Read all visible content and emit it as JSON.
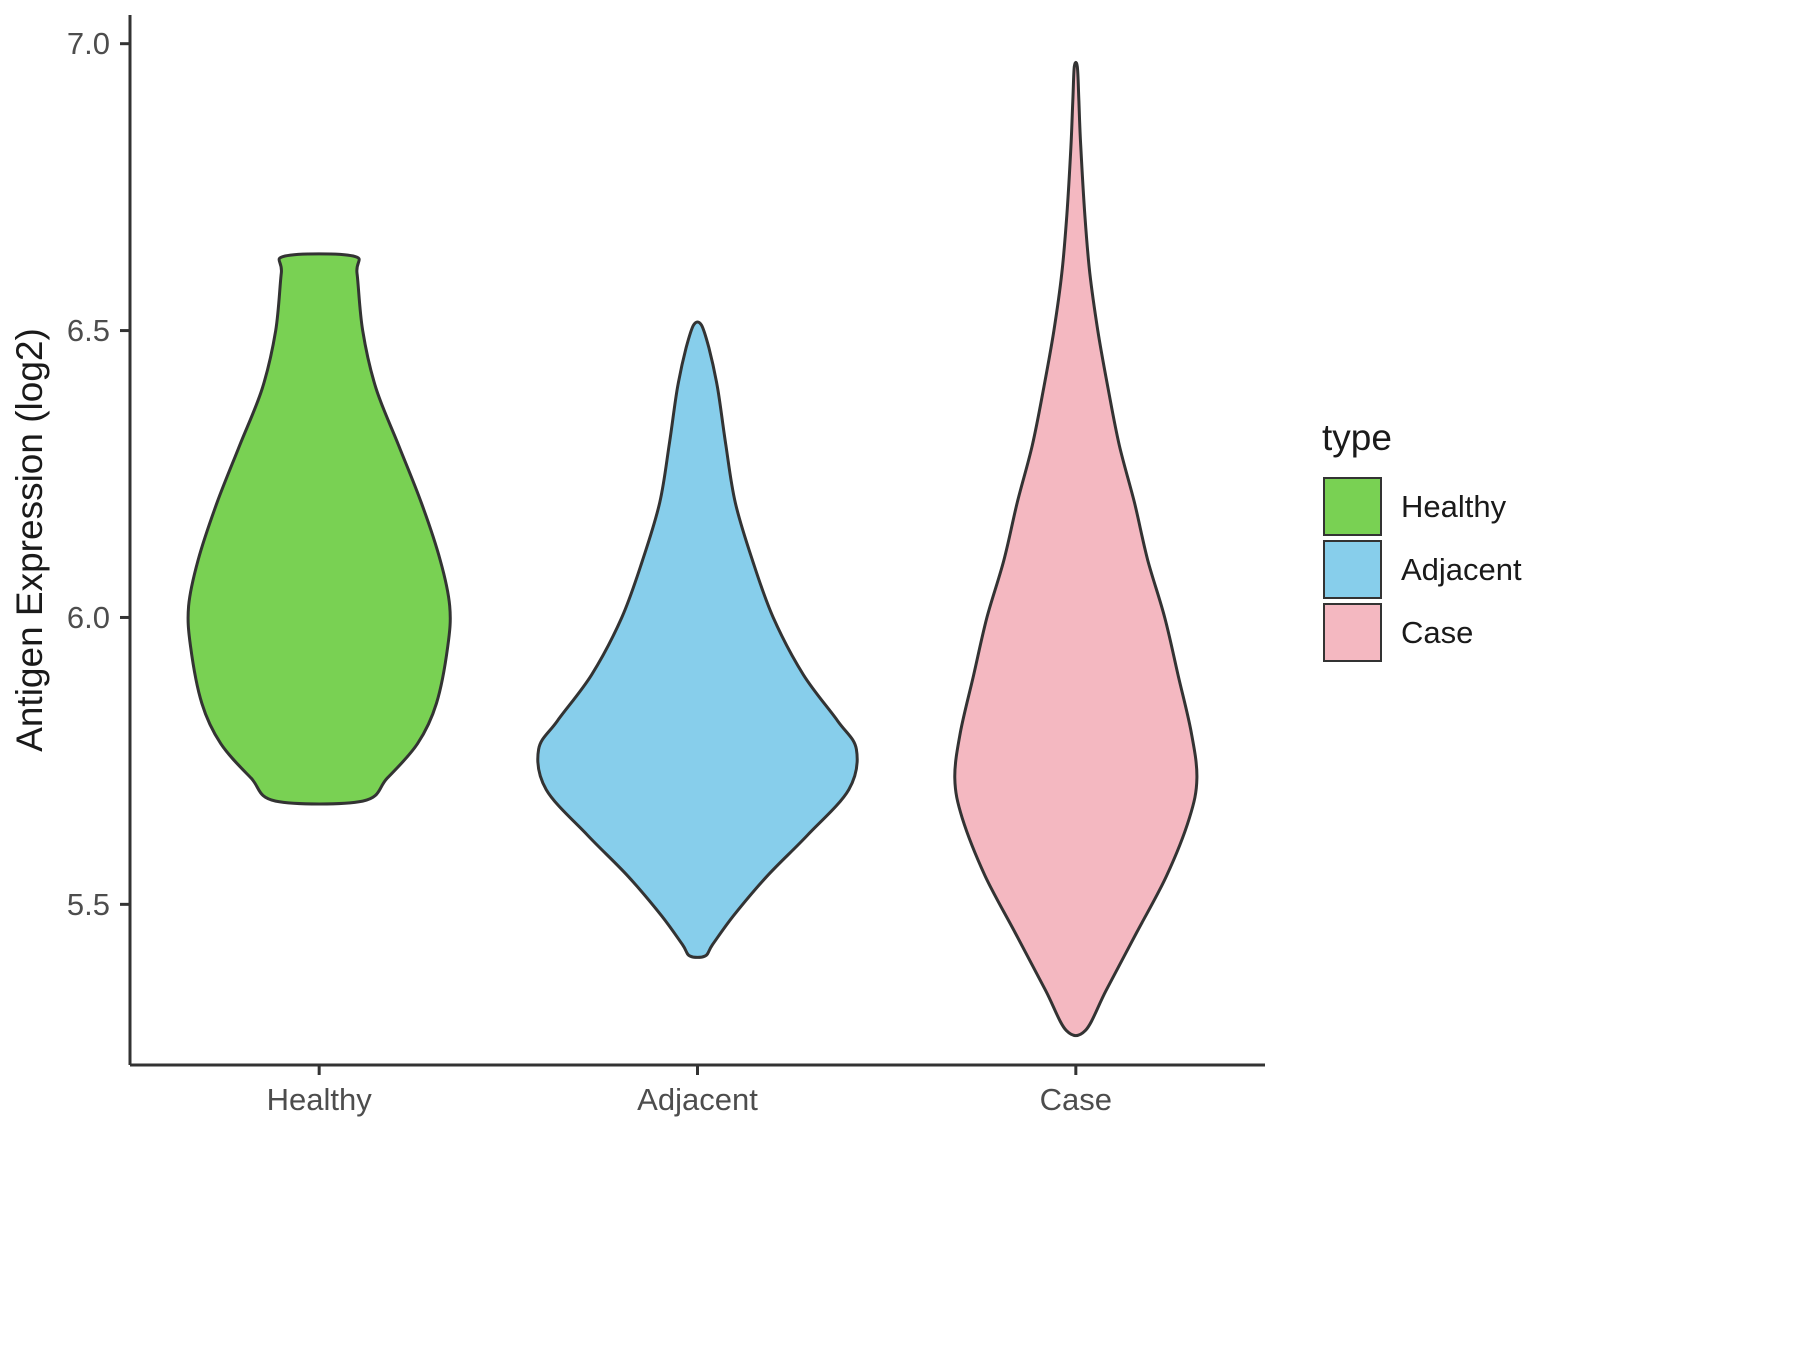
{
  "chart_data": {
    "type": "violin",
    "title": "",
    "xlabel": "",
    "ylabel": "Antigen Expression (log2)",
    "ylim": [
      5.22,
      7.05
    ],
    "yticks": [
      5.5,
      6.0,
      6.5,
      7.0
    ],
    "ytick_labels": [
      "5.5",
      "6.0",
      "6.5",
      "7.0"
    ],
    "categories": [
      "Healthy",
      "Adjacent",
      "Case"
    ],
    "grid": "off",
    "legend": {
      "title": "type",
      "position": "right",
      "entries": [
        {
          "label": "Healthy",
          "color": "#79D153"
        },
        {
          "label": "Adjacent",
          "color": "#87CEEB"
        },
        {
          "label": "Case",
          "color": "#F4B8C1"
        }
      ]
    },
    "series": [
      {
        "name": "Healthy",
        "color": "#79D153",
        "value_range": [
          5.68,
          6.63
        ],
        "cap": "flat",
        "profile": [
          [
            5.68,
            0.115
          ],
          [
            5.72,
            0.18
          ],
          [
            5.78,
            0.26
          ],
          [
            5.85,
            0.31
          ],
          [
            5.95,
            0.34
          ],
          [
            6.02,
            0.345
          ],
          [
            6.1,
            0.32
          ],
          [
            6.2,
            0.27
          ],
          [
            6.3,
            0.21
          ],
          [
            6.4,
            0.15
          ],
          [
            6.5,
            0.115
          ],
          [
            6.6,
            0.1
          ],
          [
            6.63,
            0.09
          ]
        ]
      },
      {
        "name": "Adjacent",
        "color": "#87CEEB",
        "value_range": [
          5.41,
          6.51
        ],
        "cap": "tip",
        "profile": [
          [
            5.41,
            0.02
          ],
          [
            5.43,
            0.04
          ],
          [
            5.48,
            0.095
          ],
          [
            5.55,
            0.185
          ],
          [
            5.62,
            0.29
          ],
          [
            5.7,
            0.4
          ],
          [
            5.77,
            0.42
          ],
          [
            5.82,
            0.37
          ],
          [
            5.9,
            0.28
          ],
          [
            6.0,
            0.2
          ],
          [
            6.1,
            0.145
          ],
          [
            6.2,
            0.1
          ],
          [
            6.3,
            0.075
          ],
          [
            6.4,
            0.053
          ],
          [
            6.47,
            0.03
          ],
          [
            6.51,
            0.01
          ]
        ]
      },
      {
        "name": "Case",
        "color": "#F4B8C1",
        "value_range": [
          5.28,
          6.96
        ],
        "cap": "tip",
        "profile": [
          [
            5.28,
            0.025
          ],
          [
            5.35,
            0.08
          ],
          [
            5.45,
            0.16
          ],
          [
            5.55,
            0.24
          ],
          [
            5.65,
            0.3
          ],
          [
            5.72,
            0.32
          ],
          [
            5.8,
            0.305
          ],
          [
            5.9,
            0.27
          ],
          [
            6.0,
            0.235
          ],
          [
            6.1,
            0.19
          ],
          [
            6.2,
            0.155
          ],
          [
            6.3,
            0.115
          ],
          [
            6.4,
            0.085
          ],
          [
            6.5,
            0.058
          ],
          [
            6.6,
            0.037
          ],
          [
            6.7,
            0.024
          ],
          [
            6.82,
            0.013
          ],
          [
            6.9,
            0.008
          ],
          [
            6.96,
            0.004
          ]
        ]
      }
    ]
  },
  "styles": {
    "axis_color": "#333333",
    "violin_outline_color": "#333333",
    "tick_label_color": "#4D4D4D",
    "title_text_color": "#1A1A1A",
    "background": "#FFFFFF"
  }
}
